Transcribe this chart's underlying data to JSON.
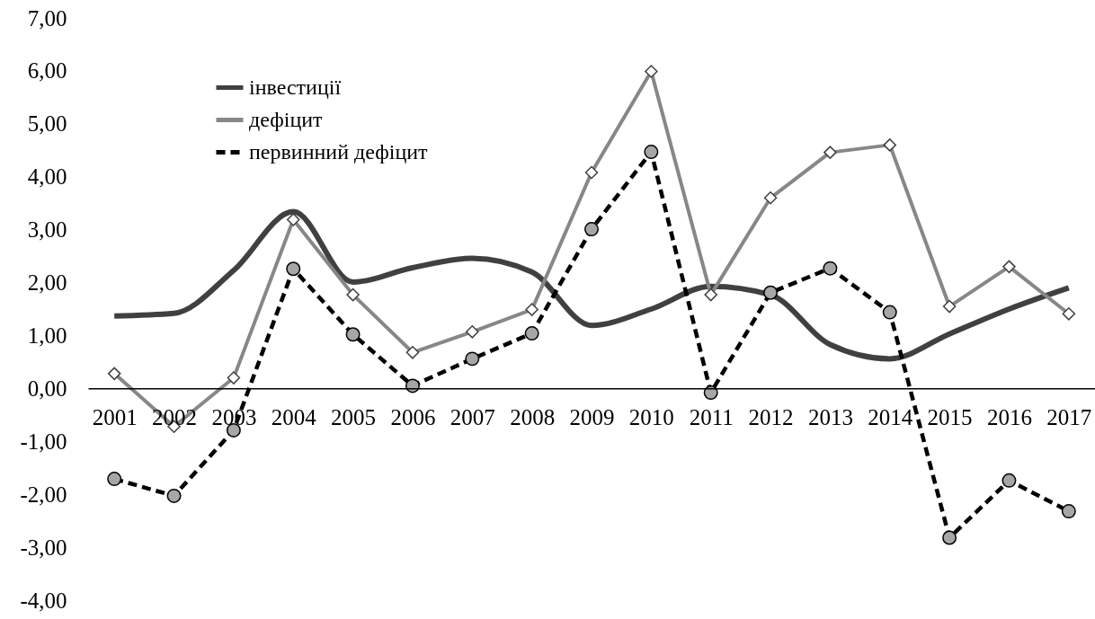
{
  "chart_data": {
    "type": "line",
    "categories": [
      "2001",
      "2002",
      "2003",
      "2004",
      "2005",
      "2006",
      "2007",
      "2008",
      "2009",
      "2010",
      "2011",
      "2012",
      "2013",
      "2014",
      "2015",
      "2016",
      "2017"
    ],
    "series": [
      {
        "name": "інвестиції",
        "color": "#404040",
        "line_style": "solid",
        "marker": "none",
        "values": [
          1.37,
          1.42,
          2.23,
          3.34,
          2.01,
          2.28,
          2.46,
          2.2,
          1.19,
          1.5,
          1.93,
          1.77,
          0.83,
          0.56,
          1.03,
          1.5,
          1.9
        ]
      },
      {
        "name": "дефіцит",
        "color": "#878787",
        "line_style": "solid",
        "marker": "diamond",
        "values": [
          0.28,
          -0.72,
          0.2,
          3.19,
          1.77,
          0.68,
          1.07,
          1.49,
          4.08,
          5.99,
          1.77,
          3.6,
          4.46,
          4.6,
          1.55,
          2.3,
          1.41
        ]
      },
      {
        "name": "первинний дефіцит",
        "color": "#000000",
        "line_style": "dashed",
        "marker": "circle",
        "values": [
          -1.71,
          -2.03,
          -0.79,
          2.26,
          1.02,
          0.05,
          0.56,
          1.04,
          3.01,
          4.47,
          -0.08,
          1.81,
          2.27,
          1.44,
          -2.82,
          -1.74,
          -2.32
        ]
      }
    ],
    "ylim": [
      -4,
      7
    ],
    "yticks": [
      {
        "value": -4,
        "label": "-4,00"
      },
      {
        "value": -3,
        "label": "-3,00"
      },
      {
        "value": -2,
        "label": "-2,00"
      },
      {
        "value": -1,
        "label": "-1,00"
      },
      {
        "value": 0,
        "label": "0,00"
      },
      {
        "value": 1,
        "label": "1,00"
      },
      {
        "value": 2,
        "label": "2,00"
      },
      {
        "value": 3,
        "label": "3,00"
      },
      {
        "value": 4,
        "label": "4,00"
      },
      {
        "value": 5,
        "label": "5,00"
      },
      {
        "value": 6,
        "label": "6,00"
      },
      {
        "value": 7,
        "label": "7,00"
      }
    ],
    "grid": false,
    "legend": "top left"
  }
}
